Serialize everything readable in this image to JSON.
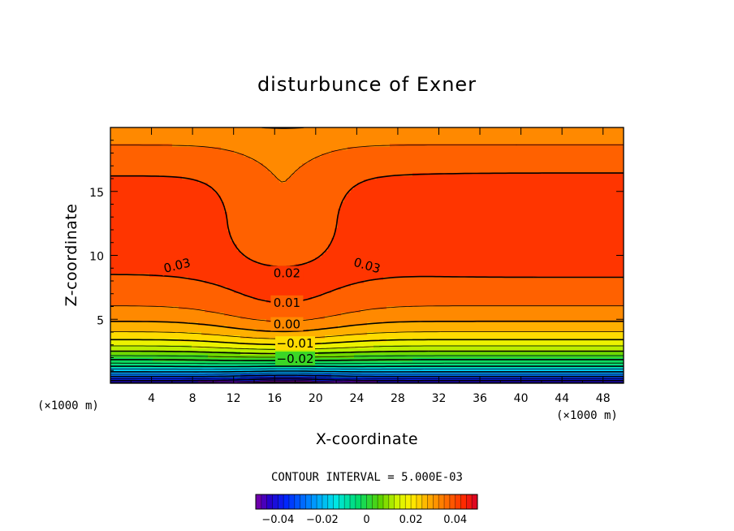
{
  "chart_data": {
    "type": "heatmap",
    "title": "disturbunce of Exner",
    "xlabel": "X-coordinate",
    "ylabel": "Z-coordinate",
    "x_unit": "(×1000 m)",
    "z_unit": "(×1000 m)",
    "xlim": [
      0,
      50
    ],
    "ylim": [
      0,
      20
    ],
    "x_ticks": [
      4,
      8,
      12,
      16,
      20,
      24,
      28,
      32,
      36,
      40,
      44,
      48
    ],
    "y_ticks": [
      5,
      10,
      15
    ],
    "contour_interval_text": "CONTOUR INTERVAL = 5.000E-03",
    "contour_interval": 0.005,
    "contour_labels": [
      {
        "text": "0.03",
        "x": 6.5,
        "z": 9.2
      },
      {
        "text": "0.03",
        "x": 25.0,
        "z": 9.2
      },
      {
        "text": "0.02",
        "x": 17.2,
        "z": 8.6
      },
      {
        "text": "0.01",
        "x": 17.2,
        "z": 6.3
      },
      {
        "text": "0.00",
        "x": 17.2,
        "z": 4.6
      },
      {
        "text": "−0.01",
        "x": 18.0,
        "z": 3.1
      },
      {
        "text": "−0.02",
        "x": 18.0,
        "z": 1.9
      }
    ],
    "colorbar": {
      "min": -0.05,
      "max": 0.05,
      "ticks": [
        "−0.04",
        "−0.02",
        "0",
        "0.02",
        "0.04"
      ],
      "tick_values": [
        -0.04,
        -0.02,
        0,
        0.02,
        0.04
      ]
    }
  }
}
